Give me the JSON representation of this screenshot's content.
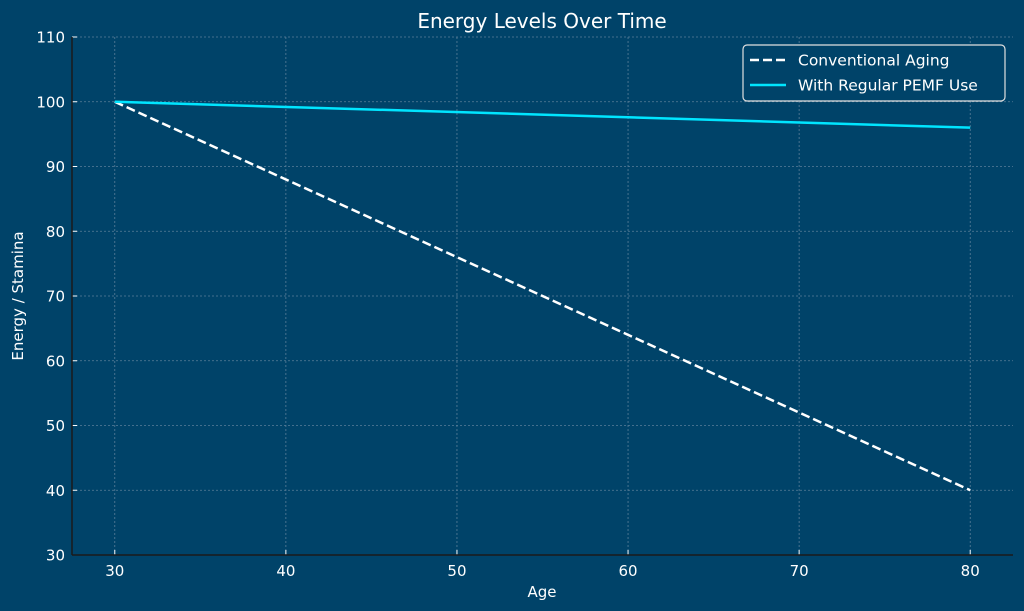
{
  "chart_data": {
    "type": "line",
    "title": "Energy Levels Over Time",
    "xlabel": "Age",
    "ylabel": "Energy / Stamina",
    "xlim": [
      27.5,
      82.5
    ],
    "ylim": [
      30,
      110
    ],
    "xticks": [
      30,
      40,
      50,
      60,
      70,
      80
    ],
    "yticks": [
      30,
      40,
      50,
      60,
      70,
      80,
      90,
      100,
      110
    ],
    "xtick_labels": [
      "30",
      "40",
      "50",
      "60",
      "70",
      "80"
    ],
    "ytick_labels": [
      "30",
      "40",
      "50",
      "60",
      "70",
      "80",
      "90",
      "100",
      "110"
    ],
    "grid": true,
    "legend_position": "top-right",
    "x": [
      30,
      80
    ],
    "series": [
      {
        "name": "Conventional Aging",
        "values": [
          100,
          40
        ],
        "color": "#ffffff",
        "style": "dashed"
      },
      {
        "name": "With Regular PEMF Use",
        "values": [
          100,
          96
        ],
        "color": "#00e5ff",
        "style": "solid"
      }
    ],
    "colors": {
      "background": "#004369",
      "grid": "#5a7f99",
      "axis": "#1a1a1a",
      "text": "#ffffff"
    }
  }
}
